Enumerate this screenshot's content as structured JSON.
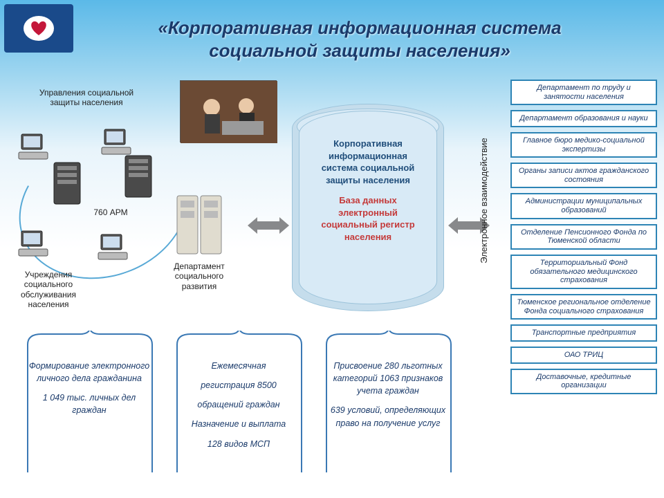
{
  "title_line1": "«Корпоративная информационная система",
  "title_line2": "социальной защиты населения»",
  "title_fontsize": 26,
  "title_color": "#1a3a6a",
  "logo_bg": "#1a4a8a",
  "background_gradient": [
    "#5bb9e8",
    "#9fd6f0",
    "#e8f4fb",
    "#ffffff"
  ],
  "left": {
    "top_label": "Управления социальной защиты населения",
    "bottom_label": "Учреждения социального обслуживания населения",
    "center_label": "760 АРМ",
    "dept_label": "Департамент социального развития",
    "ring_color": "#58a9d6",
    "computer_count": 4
  },
  "database": {
    "title": "Корпоративная информационная система социальной защиты населения",
    "subtitle": "База данных электронный социальный регистр населения",
    "bg": "#d8eaf6",
    "border": "#9cc3da",
    "title_color": "#1f4d7a",
    "subtitle_color": "#c43a3a"
  },
  "vertical_label": "Электронное взаимодействие",
  "arrows": {
    "fill": "#88898b"
  },
  "right_boxes": {
    "border_color": "#2d84b5",
    "text_color": "#1a3a6a",
    "font_style": "italic",
    "items": [
      "Департамент по труду и занятости населения",
      "Департамент образования и науки",
      "Главное бюро медико-социальной экспертизы",
      "Органы записи актов гражданского состояния",
      "Администрации муниципальных образований",
      "Отделение Пенсионного Фонда по Тюменской области",
      "Территориальный Фонд обязательного медицинского страхования",
      "Тюменское региональное отделение Фонда социального страхования",
      "Транспортные предприятия",
      "ОАО ТРИЦ",
      "Доставочные, кредитные организации"
    ]
  },
  "bottom_blocks": {
    "brace_color": "#3a78b4",
    "text_color": "#1a3a6a",
    "font_style": "italic",
    "items": [
      {
        "lines": [
          "Формирование электронного личного дела гражданина",
          "1 049 тыс. личных дел граждан"
        ]
      },
      {
        "lines": [
          "Ежемесячная",
          "регистрация 8500",
          "обращений граждан",
          "Назначение и выплата",
          "128 видов МСП"
        ]
      },
      {
        "lines": [
          "Присвоение 280 льготных категорий 1063 признаков учета граждан",
          "639 условий, определяющих право на получение услуг"
        ]
      }
    ]
  }
}
